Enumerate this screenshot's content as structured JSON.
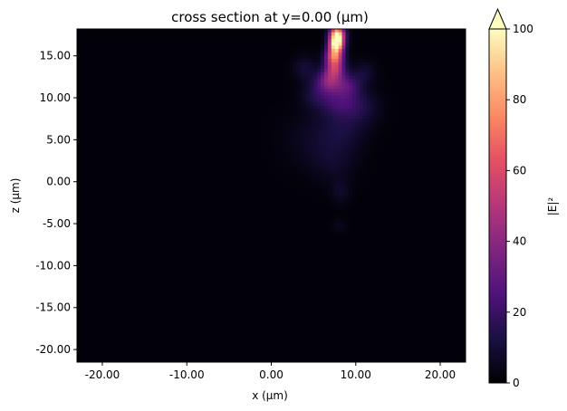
{
  "chart_data": {
    "type": "heatmap",
    "title": "cross section at y=0.00 (μm)",
    "xlabel": "x (μm)",
    "ylabel": "z (μm)",
    "xlim": [
      -23.0,
      23.0
    ],
    "ylim": [
      -21.5,
      18.2
    ],
    "x_ticks": [
      {
        "value": -20,
        "label": "-20.00"
      },
      {
        "value": -10,
        "label": "-10.00"
      },
      {
        "value": 0,
        "label": "0.00"
      },
      {
        "value": 10,
        "label": "10.00"
      },
      {
        "value": 20,
        "label": "20.00"
      }
    ],
    "y_ticks": [
      {
        "value": 15,
        "label": "15.00"
      },
      {
        "value": 10,
        "label": "10.00"
      },
      {
        "value": 5,
        "label": "5.00"
      },
      {
        "value": 0,
        "label": "0.00"
      },
      {
        "value": -5,
        "label": "-5.00"
      },
      {
        "value": -10,
        "label": "-10.00"
      },
      {
        "value": -15,
        "label": "-15.00"
      },
      {
        "value": -20,
        "label": "-20.00"
      }
    ],
    "colorbar": {
      "label": "|E|²",
      "colormap": "magma",
      "range": [
        0,
        100
      ],
      "extend": "max",
      "ticks": [
        {
          "value": 0,
          "label": "0"
        },
        {
          "value": 20,
          "label": "20"
        },
        {
          "value": 40,
          "label": "40"
        },
        {
          "value": 60,
          "label": "60"
        },
        {
          "value": 80,
          "label": "80"
        },
        {
          "value": 100,
          "label": "100"
        }
      ]
    },
    "background_value": 1,
    "hotspots": [
      {
        "x": 7.8,
        "z": 17.5,
        "sx": 0.6,
        "sz": 0.7,
        "peak": 100
      },
      {
        "x": 7.7,
        "z": 16.3,
        "sx": 0.6,
        "sz": 0.6,
        "peak": 85
      },
      {
        "x": 7.5,
        "z": 15.0,
        "sx": 0.7,
        "sz": 0.7,
        "peak": 65
      },
      {
        "x": 7.5,
        "z": 13.5,
        "sx": 0.8,
        "sz": 0.8,
        "peak": 45
      },
      {
        "x": 6.8,
        "z": 12.0,
        "sx": 1.0,
        "sz": 0.9,
        "peak": 30
      },
      {
        "x": 8.8,
        "z": 11.5,
        "sx": 1.2,
        "sz": 1.0,
        "peak": 22
      },
      {
        "x": 8.0,
        "z": 9.5,
        "sx": 1.5,
        "sz": 1.2,
        "peak": 15
      },
      {
        "x": 5.5,
        "z": 10.5,
        "sx": 1.3,
        "sz": 1.2,
        "peak": 12
      },
      {
        "x": 10.5,
        "z": 9.0,
        "sx": 1.6,
        "sz": 1.4,
        "peak": 10
      },
      {
        "x": 8.5,
        "z": 6.5,
        "sx": 2.0,
        "sz": 1.8,
        "peak": 9
      },
      {
        "x": 4.0,
        "z": 13.5,
        "sx": 1.0,
        "sz": 1.0,
        "peak": 9
      },
      {
        "x": 11.0,
        "z": 13.0,
        "sx": 1.0,
        "sz": 1.0,
        "peak": 8
      },
      {
        "x": 7.5,
        "z": 2.5,
        "sx": 1.8,
        "sz": 1.8,
        "peak": 6
      },
      {
        "x": 8.2,
        "z": -1.2,
        "sx": 0.8,
        "sz": 1.0,
        "peak": 6
      },
      {
        "x": 8.0,
        "z": -5.2,
        "sx": 0.6,
        "sz": 0.6,
        "peak": 4
      },
      {
        "x": 5.0,
        "z": 5.0,
        "sx": 2.5,
        "sz": 2.5,
        "peak": 5
      }
    ]
  }
}
